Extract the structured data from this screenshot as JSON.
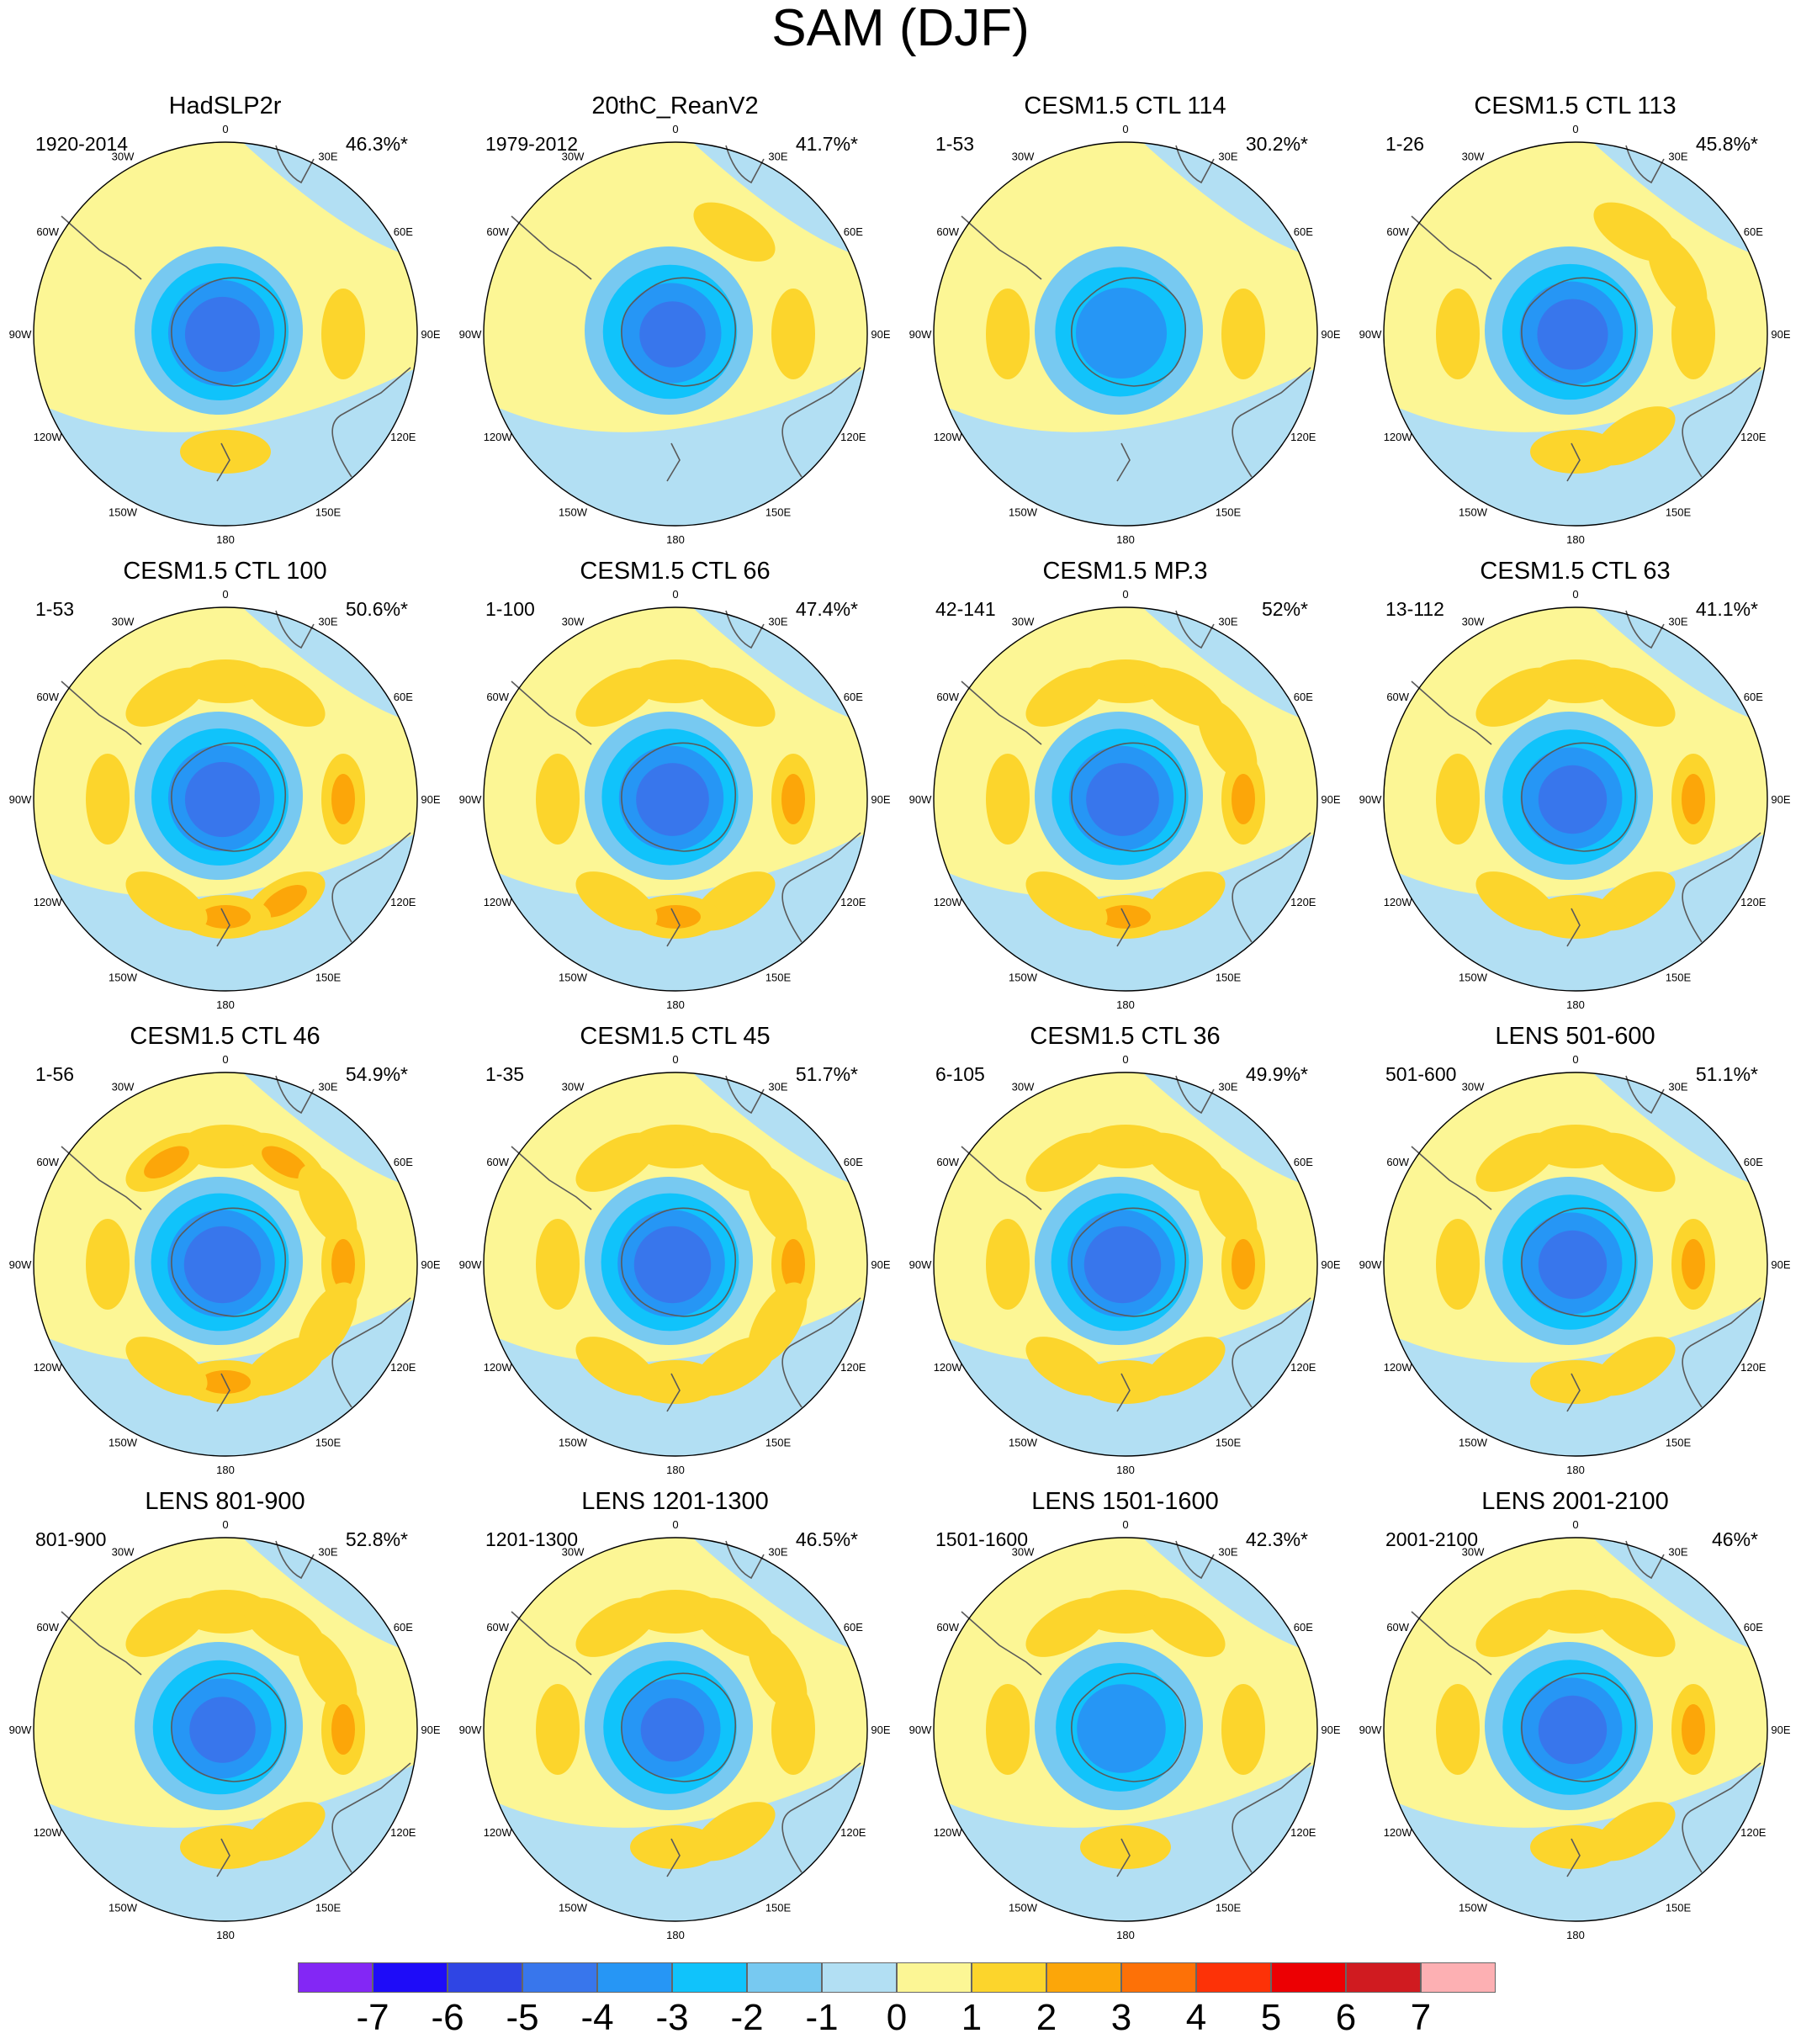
{
  "figure": {
    "title": "SAM (DJF)",
    "lon_labels": [
      "0",
      "30E",
      "60E",
      "90E",
      "120E",
      "150E",
      "180",
      "150W",
      "120W",
      "90W",
      "60W",
      "30W"
    ]
  },
  "panels": [
    {
      "title": "HadSLP2r",
      "period": "1920-2014",
      "variance": "46.3%*",
      "min_value": -4.6,
      "ring_peaks": [
        0.6,
        0,
        0,
        1.2,
        0.4,
        0.9,
        1.1,
        0.2,
        0.1,
        0.5,
        0.3,
        0.2
      ]
    },
    {
      "title": "20thC_ReanV2",
      "period": "1979-2012",
      "variance": "41.7%*",
      "min_value": -4.2,
      "ring_peaks": [
        0.6,
        1.3,
        0.6,
        1.4,
        0.6,
        0,
        0,
        0.5,
        0.4,
        0.3,
        0.9,
        0.6
      ]
    },
    {
      "title": "CESM1.5 CTL 114",
      "period": "1-53",
      "variance": "30.2%*",
      "min_value": -3.7,
      "ring_peaks": [
        0.5,
        0.3,
        0.2,
        1.3,
        0.5,
        0,
        0,
        0.5,
        0.7,
        1.3,
        0.3,
        0.7
      ]
    },
    {
      "title": "CESM1.5 CTL 113",
      "period": "1-26",
      "variance": "45.8%*",
      "min_value": -4.4,
      "ring_peaks": [
        0.7,
        1.4,
        1.2,
        1.5,
        0.6,
        1.2,
        1.4,
        0.7,
        0.4,
        1.3,
        0.8,
        0.4
      ]
    },
    {
      "title": "CESM1.5 CTL 100",
      "period": "1-53",
      "variance": "50.6%*",
      "min_value": -4.6,
      "ring_peaks": [
        1.3,
        1.8,
        0.9,
        2.3,
        0.9,
        2.1,
        2.6,
        1.2,
        0.6,
        1.7,
        0.6,
        1.3
      ]
    },
    {
      "title": "CESM1.5 CTL 66",
      "period": "1-100",
      "variance": "47.4%*",
      "min_value": -4.5,
      "ring_peaks": [
        1.6,
        1.9,
        0.8,
        2.1,
        0.9,
        1.8,
        2.2,
        1.5,
        0.7,
        1.6,
        0.7,
        1.9
      ]
    },
    {
      "title": "CESM1.5 MP.3",
      "period": "42-141",
      "variance": "52%*",
      "min_value": -4.5,
      "ring_peaks": [
        1.4,
        1.6,
        1.1,
        2.4,
        0.8,
        1.8,
        2.2,
        1.0,
        0.6,
        1.5,
        0.6,
        1.3
      ]
    },
    {
      "title": "CESM1.5 CTL 63",
      "period": "13-112",
      "variance": "41.1%*",
      "min_value": -4.3,
      "ring_peaks": [
        1.5,
        1.7,
        0.9,
        2.1,
        0.8,
        1.6,
        1.9,
        1.1,
        0.6,
        1.6,
        0.6,
        1.4
      ]
    },
    {
      "title": "CESM1.5 CTL 46",
      "period": "1-56",
      "variance": "54.9%*",
      "min_value": -4.7,
      "ring_peaks": [
        1.7,
        2.0,
        1.2,
        2.4,
        1.0,
        1.9,
        2.2,
        1.2,
        0.7,
        1.6,
        0.7,
        2.1
      ]
    },
    {
      "title": "CESM1.5 CTL 45",
      "period": "1-35",
      "variance": "51.7%*",
      "min_value": -4.7,
      "ring_peaks": [
        1.6,
        1.8,
        1.2,
        2.1,
        1.0,
        1.9,
        1.8,
        1.2,
        0.5,
        1.9,
        0.8,
        1.8
      ]
    },
    {
      "title": "CESM1.5 CTL 36",
      "period": "6-105",
      "variance": "49.9%*",
      "min_value": -4.7,
      "ring_peaks": [
        1.4,
        1.6,
        1.3,
        2.1,
        0.8,
        1.6,
        1.9,
        1.0,
        0.6,
        1.5,
        0.6,
        1.6
      ]
    },
    {
      "title": "LENS 501-600",
      "period": "501-600",
      "variance": "51.1%*",
      "min_value": -4.3,
      "ring_peaks": [
        1.4,
        1.5,
        0.9,
        2.0,
        0.7,
        1.4,
        1.7,
        0.9,
        0.4,
        1.2,
        0.5,
        1.6
      ]
    },
    {
      "title": "LENS 801-900",
      "period": "801-900",
      "variance": "52.8%*",
      "min_value": -4.2,
      "ring_peaks": [
        1.5,
        1.6,
        1.2,
        2.1,
        0.8,
        1.4,
        1.4,
        0.8,
        0.4,
        0.9,
        0.4,
        1.3
      ]
    },
    {
      "title": "LENS 1201-1300",
      "period": "1201-1300",
      "variance": "46.5%*",
      "min_value": -4.1,
      "ring_peaks": [
        1.3,
        1.6,
        1.0,
        1.8,
        0.7,
        1.3,
        1.5,
        0.8,
        0.4,
        1.2,
        0.5,
        1.5
      ]
    },
    {
      "title": "LENS 1501-1600",
      "period": "1501-1600",
      "variance": "42.3%*",
      "min_value": -3.6,
      "ring_peaks": [
        1.2,
        1.4,
        0.6,
        1.5,
        0.5,
        0.9,
        1.3,
        0.7,
        0.4,
        1.0,
        0.5,
        1.2
      ]
    },
    {
      "title": "LENS 2001-2100",
      "period": "2001-2100",
      "variance": "46%*",
      "min_value": -4.3,
      "ring_peaks": [
        1.4,
        1.6,
        0.9,
        2.1,
        0.8,
        1.5,
        1.6,
        0.8,
        0.4,
        1.0,
        0.5,
        1.4
      ]
    }
  ],
  "colorbar": {
    "labels": [
      "-7",
      "-6",
      "-5",
      "-4",
      "-3",
      "-2",
      "-1",
      "0",
      "1",
      "2",
      "3",
      "4",
      "5",
      "6",
      "7"
    ],
    "colors": [
      "#8327f5",
      "#1e0cf8",
      "#2f45e4",
      "#3876ec",
      "#2696f5",
      "#10c3fb",
      "#77c9f1",
      "#b2dff3",
      "#fcf695",
      "#fcd52c",
      "#fca609",
      "#fd7107",
      "#fd3207",
      "#ec0003",
      "#d01b20",
      "#fdb0b3"
    ]
  }
}
